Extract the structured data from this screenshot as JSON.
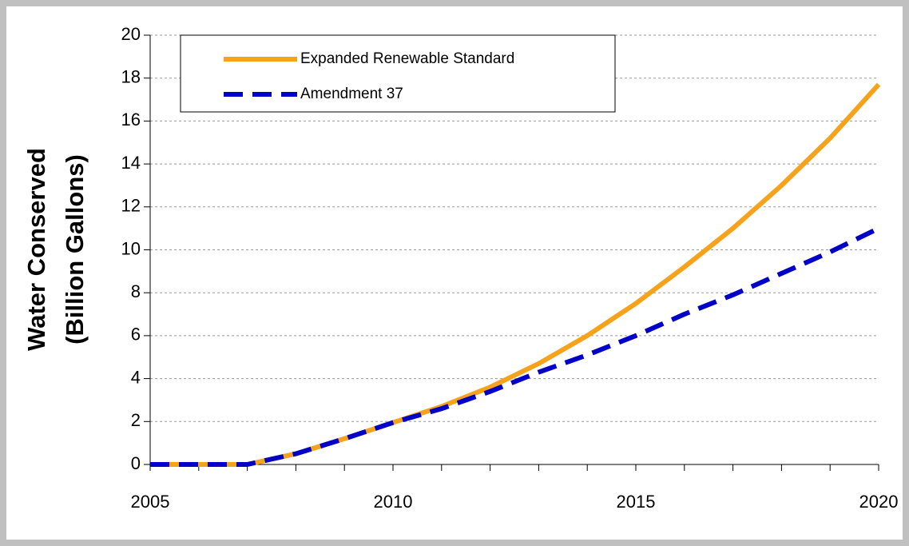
{
  "chart_data": {
    "type": "line",
    "y_label": [
      "Water Conserved",
      "(Billion Gallons)"
    ],
    "x": [
      2005,
      2006,
      2007,
      2008,
      2009,
      2010,
      2011,
      2012,
      2013,
      2014,
      2015,
      2016,
      2017,
      2018,
      2019,
      2020
    ],
    "series": [
      {
        "name": "Expanded Renewable Standard",
        "color": "#f7a21b",
        "dash": false,
        "values": [
          0,
          0,
          0,
          0.5,
          1.2,
          1.95,
          2.7,
          3.6,
          4.7,
          6.0,
          7.5,
          9.2,
          11.0,
          13.0,
          15.2,
          17.7
        ]
      },
      {
        "name": "Amendment 37",
        "color": "#0000c8",
        "dash": true,
        "values": [
          0,
          0,
          0,
          0.5,
          1.2,
          1.95,
          2.6,
          3.4,
          4.3,
          5.1,
          6.0,
          7.0,
          7.9,
          8.9,
          9.9,
          11.0
        ]
      }
    ],
    "xlim": [
      2005,
      2020
    ],
    "xticks": [
      2005,
      2010,
      2015,
      2020
    ],
    "ylim": [
      0,
      20
    ],
    "yticks": [
      0,
      2,
      4,
      6,
      8,
      10,
      12,
      14,
      16,
      18,
      20
    ],
    "grid": true,
    "legend": "top-left"
  }
}
